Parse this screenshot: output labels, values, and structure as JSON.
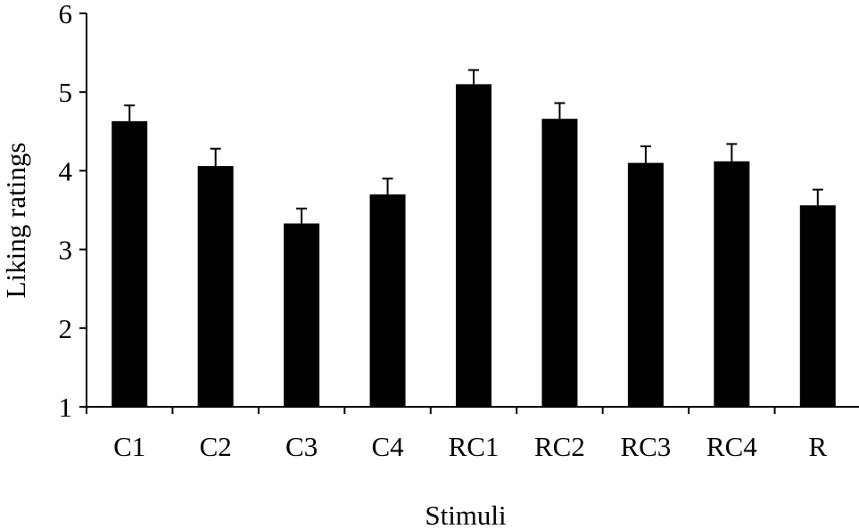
{
  "chart_data": {
    "type": "bar",
    "xlabel": "Stimuli",
    "ylabel": "Liking ratings",
    "categories": [
      "C1",
      "C2",
      "C3",
      "C4",
      "RC1",
      "RC2",
      "RC3",
      "RC4",
      "R"
    ],
    "values": [
      4.63,
      4.06,
      3.33,
      3.7,
      5.1,
      4.66,
      4.1,
      4.12,
      3.56
    ],
    "error": [
      0.2,
      0.22,
      0.19,
      0.2,
      0.18,
      0.2,
      0.21,
      0.22,
      0.2
    ],
    "ylim": [
      1,
      6
    ],
    "yticks": [
      1,
      2,
      3,
      4,
      5,
      6
    ],
    "grid": false,
    "legend": "none",
    "bar_color": "#000000"
  }
}
